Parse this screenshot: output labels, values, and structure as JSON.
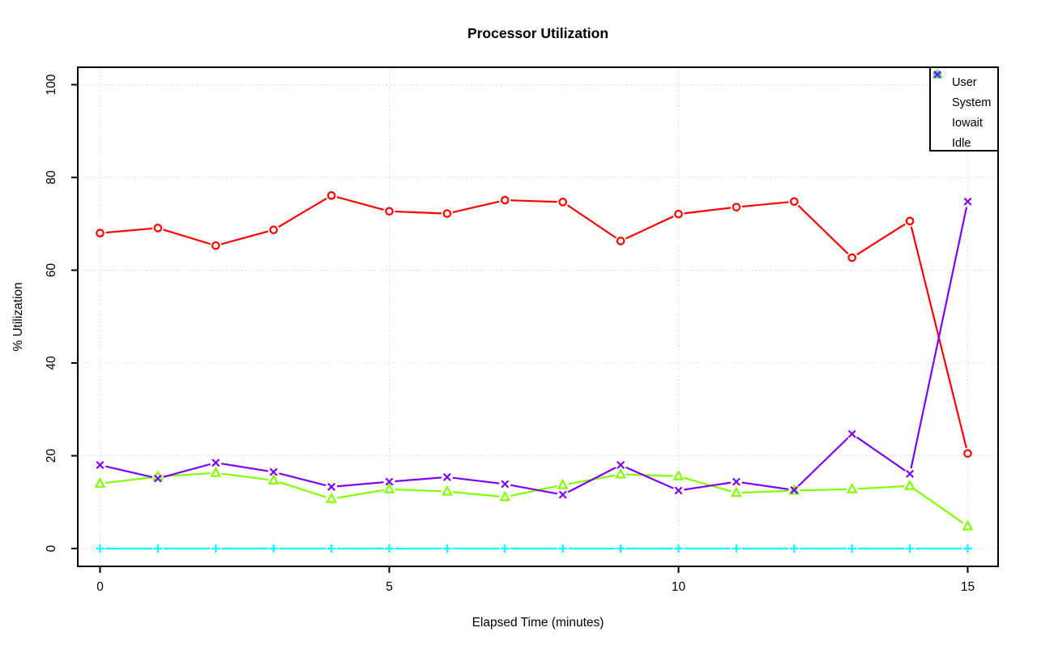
{
  "chart_data": {
    "type": "line",
    "title": "Processor Utilization",
    "xlabel": "Elapsed Time (minutes)",
    "ylabel": "% Utilization",
    "x": [
      0,
      1,
      2,
      3,
      4,
      5,
      6,
      7,
      8,
      9,
      10,
      11,
      12,
      13,
      14,
      15
    ],
    "x_ticks": [
      "0",
      "5",
      "10",
      "15"
    ],
    "x_tick_values": [
      0,
      5,
      10,
      15
    ],
    "y_ticks": [
      "0",
      "20",
      "40",
      "60",
      "80",
      "100"
    ],
    "y_tick_values": [
      0,
      20,
      40,
      60,
      80,
      100
    ],
    "xlim": [
      -0.39,
      15.53
    ],
    "ylim": [
      -3.8,
      103.8
    ],
    "grid": {
      "on": true,
      "style": "dotted",
      "color": "#d3d3d3"
    },
    "legend_position": "topright",
    "background": "#ffffff",
    "series": [
      {
        "name": "User",
        "marker": "circle",
        "color": "#ff0000",
        "values": [
          68.0,
          69.1,
          65.3,
          68.7,
          76.1,
          72.7,
          72.2,
          75.1,
          74.7,
          66.3,
          72.1,
          73.6,
          74.8,
          62.7,
          70.6,
          20.5
        ]
      },
      {
        "name": "System",
        "marker": "triangle",
        "color": "#80ff00",
        "values": [
          14.0,
          15.5,
          16.3,
          14.7,
          10.7,
          12.8,
          12.3,
          11.1,
          13.7,
          16.0,
          15.6,
          12.0,
          12.5,
          12.8,
          13.5,
          4.8
        ]
      },
      {
        "name": "Iowait",
        "marker": "plus",
        "color": "#00ffff",
        "values": [
          0,
          0,
          0,
          0,
          0,
          0,
          0,
          0,
          0,
          0,
          0,
          0,
          0,
          0,
          0,
          0
        ]
      },
      {
        "name": "Idle",
        "marker": "x",
        "color": "#8000ff",
        "values": [
          18.0,
          15.1,
          18.5,
          16.5,
          13.3,
          14.4,
          15.4,
          13.9,
          11.6,
          18.0,
          12.5,
          14.4,
          12.6,
          24.7,
          16.1,
          74.8
        ]
      }
    ]
  }
}
